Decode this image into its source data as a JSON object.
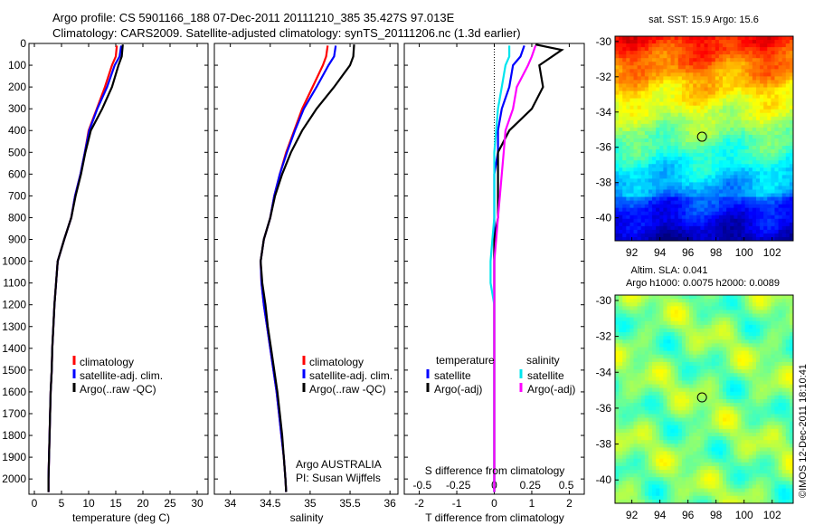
{
  "title": {
    "line1": "Argo profile: CS 5901166_188 07-Dec-2011 20111210_385 35.427S 97.013E",
    "line2": "Climatology: CARS2009. Satellite-adjusted climatology: synTS_20111206.nc (1.3d earlier)"
  },
  "colors": {
    "climatology": "#ff0000",
    "satellite": "#0000ff",
    "argo": "#000000",
    "s_satellite": "#00e5ee",
    "s_argo": "#ff00ff"
  },
  "chart_data": [
    {
      "type": "line",
      "panel": "temperature",
      "xlabel": "temperature (deg C)",
      "ylabel": "",
      "xlim": [
        -1,
        32
      ],
      "ylim": [
        2070,
        0
      ],
      "yreversed": true,
      "xticks": [
        0,
        5,
        10,
        15,
        20,
        25,
        30
      ],
      "yticks": [
        0,
        100,
        200,
        300,
        400,
        500,
        600,
        700,
        800,
        900,
        1000,
        1100,
        1200,
        1300,
        1400,
        1500,
        1600,
        1700,
        1800,
        1900,
        2000
      ],
      "legend": [
        "climatology",
        "satellite-adj. clim.",
        "Argo(..raw -QC)"
      ],
      "legend_position": "lower-center",
      "series": [
        {
          "name": "climatology",
          "color": "#ff0000",
          "x": [
            15.2,
            15.0,
            14.3,
            13.0,
            11.5,
            10.0,
            9.3,
            8.5,
            7.5,
            6.8,
            5.5,
            4.3,
            4.0,
            3.7,
            3.5,
            3.3,
            3.2,
            3.0,
            2.9,
            2.8,
            2.7,
            2.6,
            2.6
          ],
          "y": [
            10,
            60,
            100,
            200,
            300,
            400,
            500,
            600,
            700,
            800,
            900,
            1000,
            1100,
            1200,
            1300,
            1400,
            1500,
            1600,
            1700,
            1800,
            1900,
            2000,
            2060
          ]
        },
        {
          "name": "satellite-adj. clim.",
          "color": "#0000ff",
          "x": [
            16.0,
            15.7,
            14.8,
            13.4,
            11.6,
            10.1,
            9.3,
            8.5,
            7.5,
            6.8,
            5.5,
            4.3,
            4.0,
            3.7,
            3.5,
            3.3,
            3.2,
            3.0,
            2.9,
            2.8,
            2.7,
            2.6,
            2.6
          ],
          "y": [
            10,
            60,
            100,
            200,
            300,
            400,
            500,
            600,
            700,
            800,
            900,
            1000,
            1100,
            1200,
            1300,
            1400,
            1500,
            1600,
            1700,
            1800,
            1900,
            2000,
            2060
          ]
        },
        {
          "name": "Argo(..raw -QC)",
          "color": "#000000",
          "x": [
            16.3,
            16.1,
            15.5,
            14.3,
            12.5,
            10.4,
            9.4,
            8.6,
            7.6,
            6.8,
            5.5,
            4.3,
            4.0,
            3.7,
            3.5,
            3.3,
            3.2,
            3.0,
            2.9,
            2.8,
            2.7,
            2.6,
            2.6
          ],
          "y": [
            5,
            60,
            100,
            200,
            300,
            400,
            500,
            600,
            700,
            800,
            900,
            1000,
            1100,
            1200,
            1300,
            1400,
            1500,
            1600,
            1700,
            1800,
            1900,
            2000,
            2060
          ]
        }
      ]
    },
    {
      "type": "line",
      "panel": "salinity",
      "xlabel": "salinity",
      "ylabel": "",
      "xlim": [
        33.8,
        36.1
      ],
      "ylim": [
        2070,
        0
      ],
      "yreversed": true,
      "xticks": [
        34,
        34.5,
        35,
        35.5,
        36
      ],
      "legend": [
        "climatology",
        "satellite-adj. clim.",
        "Argo(..raw -QC)"
      ],
      "legend_position": "lower-center",
      "annotations": [
        "Argo AUSTRALIA",
        "PI: Susan Wijffels"
      ],
      "series": [
        {
          "name": "climatology",
          "color": "#ff0000",
          "x": [
            35.22,
            35.2,
            35.16,
            35.03,
            34.9,
            34.8,
            34.7,
            34.62,
            34.55,
            34.5,
            34.42,
            34.38,
            34.39,
            34.42,
            34.46,
            34.5,
            34.54,
            34.58,
            34.61,
            34.64,
            34.67,
            34.69,
            34.7
          ],
          "y": [
            10,
            60,
            100,
            200,
            300,
            400,
            500,
            600,
            700,
            800,
            900,
            1000,
            1100,
            1200,
            1300,
            1400,
            1500,
            1600,
            1700,
            1800,
            1900,
            2000,
            2060
          ]
        },
        {
          "name": "satellite-adj. clim.",
          "color": "#0000ff",
          "x": [
            35.32,
            35.3,
            35.23,
            35.08,
            34.92,
            34.81,
            34.71,
            34.62,
            34.55,
            34.5,
            34.42,
            34.38,
            34.39,
            34.42,
            34.46,
            34.5,
            34.54,
            34.58,
            34.61,
            34.64,
            34.67,
            34.69,
            34.7
          ],
          "y": [
            10,
            60,
            100,
            200,
            300,
            400,
            500,
            600,
            700,
            800,
            900,
            1000,
            1100,
            1200,
            1300,
            1400,
            1500,
            1600,
            1700,
            1800,
            1900,
            2000,
            2060
          ]
        },
        {
          "name": "Argo(..raw -QC)",
          "color": "#000000",
          "x": [
            35.55,
            35.54,
            35.5,
            35.3,
            35.08,
            34.9,
            34.76,
            34.65,
            34.56,
            34.5,
            34.42,
            34.38,
            34.4,
            34.44,
            34.47,
            34.51,
            34.55,
            34.59,
            34.62,
            34.65,
            34.67,
            34.69,
            34.7
          ],
          "y": [
            5,
            60,
            100,
            200,
            300,
            400,
            500,
            600,
            700,
            800,
            900,
            1000,
            1100,
            1200,
            1300,
            1400,
            1500,
            1600,
            1700,
            1800,
            1900,
            2000,
            2060
          ]
        }
      ]
    },
    {
      "type": "line",
      "panel": "difference",
      "xlabel": "T difference from climatology",
      "xlabel_top": "S difference from climatology",
      "xlim": [
        -2.4,
        2.4
      ],
      "ylim": [
        2070,
        0
      ],
      "yreversed": true,
      "xticks": [
        -2,
        -1,
        0,
        1,
        2
      ],
      "xticks_s": [
        "-0.5",
        "-0.25",
        "0",
        "0.25",
        "0.5"
      ],
      "legend_titles": [
        "temperature",
        "salinity"
      ],
      "legend": [
        "satellite",
        "Argo(-adj)",
        "satellite",
        "Argo(-adj)"
      ],
      "series": [
        {
          "name": "satellite",
          "group": "temperature",
          "color": "#0000ff",
          "x": [
            0.8,
            0.7,
            0.5,
            0.4,
            0.2,
            0.1,
            0.1,
            0.0,
            0.0,
            0.0,
            0.0,
            0.0,
            0.0,
            0.0,
            0.0,
            0.0,
            0.0,
            0.0,
            0.0,
            0.0,
            0.0,
            0.0,
            0.0
          ],
          "y": [
            10,
            60,
            100,
            200,
            300,
            400,
            500,
            600,
            700,
            800,
            900,
            1000,
            1100,
            1200,
            1300,
            1400,
            1500,
            1600,
            1700,
            1800,
            1900,
            2000,
            2060
          ]
        },
        {
          "name": "Argo(-adj)",
          "group": "temperature",
          "color": "#000000",
          "x": [
            1.1,
            1.8,
            1.2,
            1.3,
            1.0,
            0.4,
            0.1,
            0.1,
            0.1,
            0.1,
            0.0,
            0.0,
            0.0,
            0.0,
            0.0,
            0.0,
            0.0,
            0.0,
            0.0,
            0.0,
            0.0,
            0.0,
            0.0
          ],
          "y": [
            5,
            30,
            100,
            200,
            300,
            400,
            500,
            600,
            700,
            800,
            900,
            1000,
            1100,
            1200,
            1300,
            1400,
            1500,
            1600,
            1700,
            1800,
            1900,
            2000,
            2060
          ]
        },
        {
          "name": "satellite",
          "group": "salinity",
          "color": "#00e5ee",
          "x": [
            0.4,
            0.4,
            0.3,
            0.2,
            0.1,
            0.05,
            0.0,
            0.0,
            0.0,
            0.0,
            -0.05,
            -0.1,
            -0.1,
            0.0,
            0.0,
            0.0,
            0.0,
            0.0,
            0.0,
            0.0,
            0.0,
            0.0,
            0.0
          ],
          "y": [
            10,
            60,
            100,
            200,
            300,
            400,
            500,
            600,
            700,
            800,
            900,
            1000,
            1100,
            1200,
            1300,
            1400,
            1500,
            1600,
            1700,
            1800,
            1900,
            2000,
            2060
          ]
        },
        {
          "name": "Argo(-adj)",
          "group": "salinity",
          "color": "#ff00ff",
          "x": [
            1.1,
            1.0,
            0.9,
            0.6,
            0.5,
            0.3,
            0.25,
            0.2,
            0.15,
            0.1,
            0.05,
            0.0,
            0.0,
            0.0,
            0.0,
            0.0,
            0.0,
            0.0,
            0.0,
            0.0,
            0.0,
            0.0,
            0.0
          ],
          "y": [
            10,
            60,
            100,
            200,
            300,
            400,
            500,
            600,
            700,
            800,
            900,
            1000,
            1100,
            1200,
            1300,
            1400,
            1500,
            1600,
            1700,
            1800,
            1900,
            2000,
            2060
          ]
        }
      ]
    },
    {
      "type": "heatmap",
      "panel": "sst-map",
      "title": "sat. SST: 15.9 Argo: 15.6",
      "xlim": [
        90.8,
        103.5
      ],
      "ylim": [
        -41.3,
        -29.7
      ],
      "xticks": [
        92,
        94,
        96,
        98,
        100,
        102
      ],
      "yticks": [
        -30,
        -32,
        -34,
        -36,
        -38,
        -40
      ],
      "marker": {
        "lon": 97.0,
        "lat": -35.4
      },
      "colormap": "jet"
    },
    {
      "type": "heatmap",
      "panel": "sla-map",
      "title": "Altim. SLA: 0.041",
      "subtitle": "Argo h1000: 0.0075 h2000: 0.0089",
      "xlim": [
        90.8,
        103.5
      ],
      "ylim": [
        -41.3,
        -29.7
      ],
      "xticks": [
        92,
        94,
        96,
        98,
        100,
        102
      ],
      "yticks": [
        -30,
        -32,
        -34,
        -36,
        -38,
        -40
      ],
      "marker": {
        "lon": 97.0,
        "lat": -35.4
      },
      "colormap": "jet"
    }
  ],
  "credit": "©IMOS 12-Dec-2011 18:10:41"
}
